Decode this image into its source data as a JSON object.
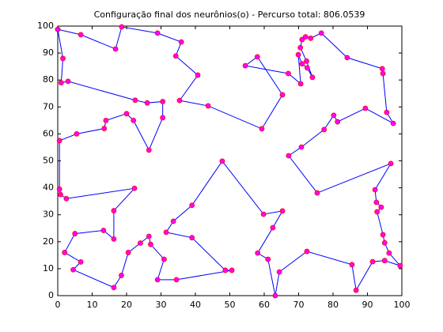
{
  "chart_data": {
    "type": "line",
    "title": "Configuração final dos neurônios(o) - Percurso total: 806.0539",
    "xlim": [
      0,
      100
    ],
    "ylim": [
      0,
      100
    ],
    "xticks": [
      0,
      10,
      20,
      30,
      40,
      50,
      60,
      70,
      80,
      90,
      100
    ],
    "yticks": [
      0,
      10,
      20,
      30,
      40,
      50,
      60,
      70,
      80,
      90,
      100
    ],
    "series": [
      {
        "color": "#0000ff",
        "marker_color": "#ff00ff",
        "marker_edge": "#ff0000",
        "x": [
          0,
          6.7,
          16.8,
          18.6,
          29,
          35.9,
          34.3,
          40.7,
          35.4,
          43.7,
          59.3,
          65.3,
          58,
          54.5,
          67,
          70.6,
          69.9,
          71,
          72.5,
          74,
          72.3,
          70.5,
          71,
          72,
          73.5,
          76.6,
          84.1,
          94.3,
          94.5,
          95.6,
          97.5,
          89.4,
          81.3,
          80.2,
          77.4,
          70.8,
          67.1,
          75.4,
          96.8,
          92.2,
          92.6,
          94,
          92.8,
          94.5,
          95,
          96.3,
          99.5,
          95,
          91.5,
          86.7,
          85.5,
          72.4,
          64.4,
          63.2,
          61.1,
          58.1,
          62.5,
          65.3,
          59.8,
          47.8,
          39,
          33.6,
          31.5,
          39,
          48.7,
          50.6,
          34.5,
          29,
          30.9,
          27,
          26.5,
          24,
          20.5,
          18.5,
          16.3,
          4.5,
          6.7,
          2,
          5,
          13.3,
          16.3,
          16.3,
          22.3,
          2.5,
          0.8,
          0.5,
          0.5,
          5.5,
          13.5,
          14,
          20,
          22,
          26.5,
          30.5,
          30.5,
          26,
          22.5,
          3,
          1,
          1.5,
          0
        ],
        "values": [
          98.8,
          96.8,
          91.5,
          99.7,
          97.4,
          94.1,
          88.9,
          81.8,
          72.4,
          70.4,
          61.9,
          74.5,
          88.6,
          85.3,
          82.4,
          78.6,
          89.4,
          86,
          84.5,
          81,
          87,
          92,
          95,
          96,
          95.5,
          97.4,
          88.3,
          84.2,
          82.4,
          68,
          63.9,
          69.5,
          64.5,
          66.9,
          61.6,
          55.1,
          51.9,
          38.1,
          49,
          39.3,
          34.6,
          32.8,
          31.1,
          22.6,
          19.6,
          15.8,
          11.1,
          13,
          12.6,
          2,
          11.5,
          16.4,
          8.8,
          0,
          13.5,
          15.8,
          25.2,
          31.4,
          30.2,
          49.9,
          33.5,
          27.6,
          23.5,
          21.5,
          9.4,
          9.4,
          5.9,
          5.9,
          13.5,
          19,
          22,
          19.5,
          16,
          7.5,
          3,
          9.6,
          12.5,
          16,
          23,
          24.2,
          21,
          31.5,
          39.8,
          36,
          37.5,
          39.5,
          57.5,
          60,
          62,
          65,
          67.5,
          65,
          54,
          66,
          72,
          71.5,
          72.5,
          79.5,
          79,
          88,
          98.8
        ]
      }
    ]
  }
}
